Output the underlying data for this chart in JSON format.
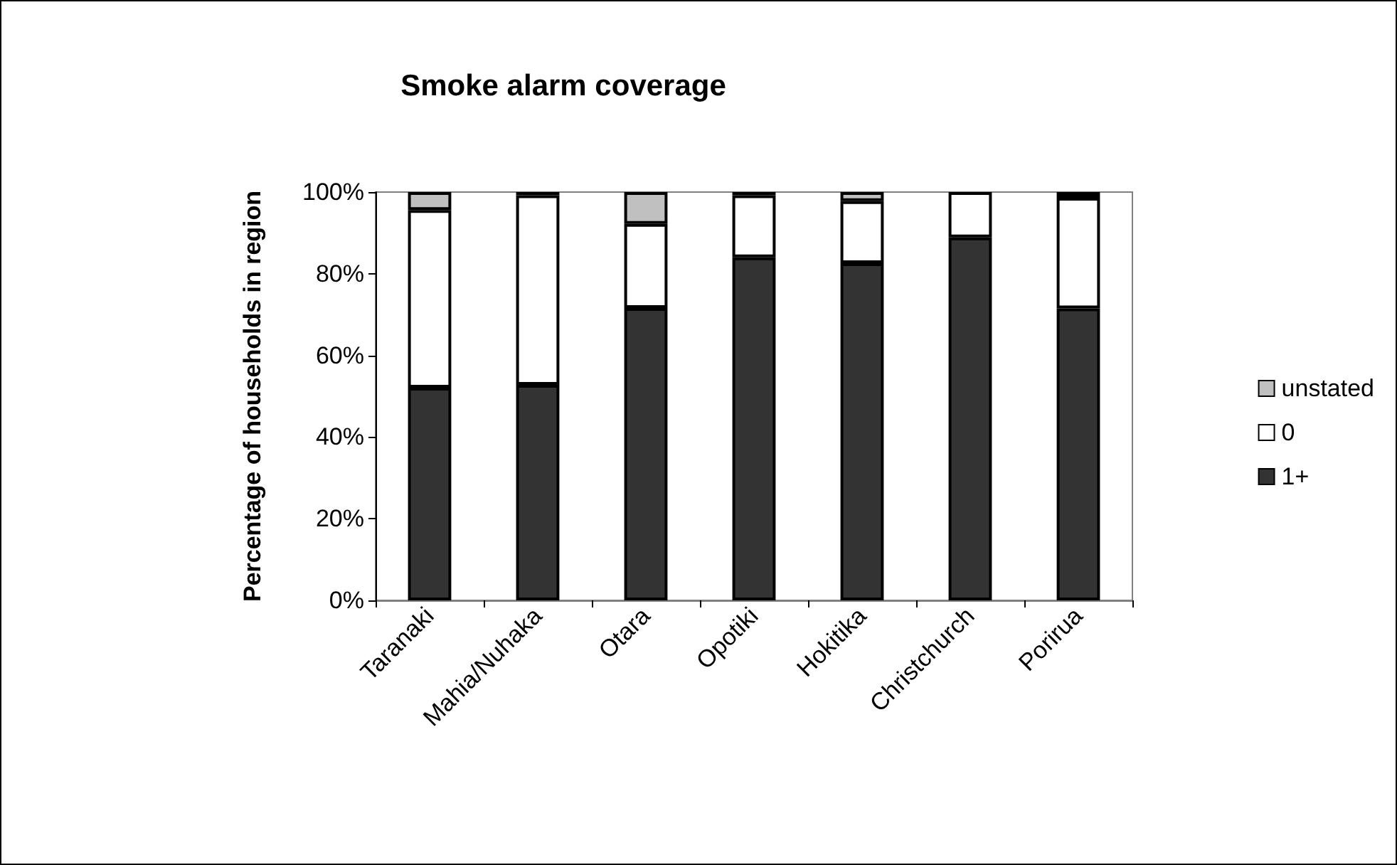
{
  "chart_data": {
    "type": "bar",
    "title": "Smoke alarm coverage",
    "ylabel": "Percentage of households in region",
    "categories": [
      "Taranaki",
      "Mahia/Nuhaka",
      "Otara",
      "Opotiki",
      "Hokitika",
      "Christchurch",
      "Porirua"
    ],
    "stacked": true,
    "series": [
      {
        "name": "1+",
        "color": "#333333",
        "values": [
          52.1,
          52.8,
          71.6,
          84.0,
          82.6,
          88.9,
          71.5
        ]
      },
      {
        "name": "0",
        "color": "#ffffff",
        "values": [
          43.5,
          46.4,
          20.6,
          15.2,
          15.2,
          11.1,
          27.1
        ]
      },
      {
        "name": "unstated",
        "color": "#c0c0c0",
        "values": [
          4.4,
          0.8,
          7.8,
          0.8,
          2.2,
          0,
          1.4
        ]
      }
    ],
    "ylim": [
      0,
      100
    ],
    "yticks": [
      {
        "value": 0,
        "label": "0%"
      },
      {
        "value": 20,
        "label": "20%"
      },
      {
        "value": 40,
        "label": "40%"
      },
      {
        "value": 60,
        "label": "60%"
      },
      {
        "value": 80,
        "label": "80%"
      },
      {
        "value": 100,
        "label": "100%"
      }
    ],
    "grid": false,
    "legend": "right"
  }
}
